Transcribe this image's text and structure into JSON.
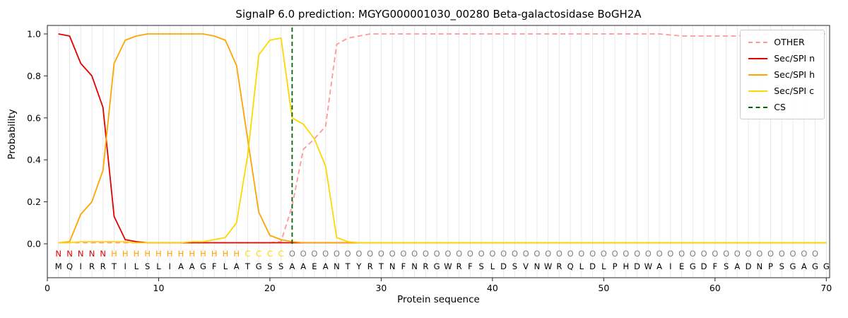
{
  "chart_data": {
    "type": "line",
    "title": "SignalP 6.0 prediction: MGYG000001030_00280 Beta-galactosidase BoGH2A",
    "xlabel": "Protein sequence",
    "ylabel": "Probability",
    "xticks": [
      0,
      10,
      20,
      30,
      40,
      50,
      60,
      70
    ],
    "yticks": [
      0.0,
      0.2,
      0.4,
      0.6,
      0.8,
      1.0
    ],
    "xlim": [
      0,
      70.3
    ],
    "ylim": [
      -0.16,
      1.04
    ],
    "x_start": 1,
    "grid": "vertical-per-residue",
    "legend_position": "upper-right",
    "cs_position": 22,
    "sequence": "MQIRRTILSLIAAGFLATGSSAAEANTYRTNFNRGWRFSLDSVNWRQLDLPHDWAIEGDFSADNPSGAGG",
    "region_labels": "NNNNNHHHHHHHHHHHHCCCCOOOOOOOOOOOOOOOOOOOOOOOOOOOOOOOOOOOOOOOOOOOOOOOO",
    "region_colors": {
      "N": "#e50000",
      "H": "#ffa500",
      "C": "#ffd700",
      "O": "#808080"
    },
    "colors": {
      "grid": "#e8e8e8",
      "spine": "#262626",
      "cs": "#006400",
      "sequence_text": "#000000",
      "background": "#ffffff"
    },
    "series": [
      {
        "name": "OTHER",
        "color": "#ff9896",
        "dashed": true,
        "values": [
          0.005,
          0.005,
          0.005,
          0.005,
          0.005,
          0.005,
          0.005,
          0.005,
          0.005,
          0.005,
          0.005,
          0.005,
          0.005,
          0.005,
          0.005,
          0.005,
          0.005,
          0.005,
          0.005,
          0.005,
          0.01,
          0.18,
          0.45,
          0.5,
          0.56,
          0.95,
          0.98,
          0.99,
          1,
          1,
          1,
          1,
          1,
          1,
          1,
          1,
          1,
          1,
          1,
          1,
          1,
          1,
          1,
          1,
          1,
          1,
          1,
          1,
          1,
          1,
          1,
          1,
          1,
          1,
          1,
          0.995,
          0.99,
          0.99,
          0.99,
          0.99,
          0.99,
          0.99,
          0.995,
          1,
          1,
          1,
          1,
          1,
          1,
          1
        ]
      },
      {
        "name": "Sec/SPI n",
        "color": "#e50000",
        "dashed": false,
        "values": [
          1,
          0.99,
          0.86,
          0.8,
          0.65,
          0.13,
          0.02,
          0.01,
          0.005,
          0.005,
          0.005,
          0.005,
          0.005,
          0.005,
          0.005,
          0.005,
          0.005,
          0.005,
          0.005,
          0.005,
          0.005,
          0.005,
          0.005,
          0.005,
          0.005,
          0.005,
          0.005,
          0.005,
          0.005,
          0.005,
          0.005,
          0.005,
          0.005,
          0.005,
          0.005,
          0.005,
          0.005,
          0.005,
          0.005,
          0.005,
          0.005,
          0.005,
          0.005,
          0.005,
          0.005,
          0.005,
          0.005,
          0.005,
          0.005,
          0.005,
          0.005,
          0.005,
          0.005,
          0.005,
          0.005,
          0.005,
          0.005,
          0.005,
          0.005,
          0.005,
          0.005,
          0.005,
          0.005,
          0.005,
          0.005,
          0.005,
          0.005,
          0.005,
          0.005,
          0.005
        ]
      },
      {
        "name": "Sec/SPI h",
        "color": "#ffa500",
        "dashed": false,
        "values": [
          0.005,
          0.01,
          0.14,
          0.2,
          0.35,
          0.86,
          0.97,
          0.99,
          1,
          1,
          1,
          1,
          1,
          1,
          0.99,
          0.97,
          0.85,
          0.5,
          0.15,
          0.04,
          0.02,
          0.01,
          0.005,
          0.005,
          0.005,
          0.005,
          0.005,
          0.005,
          0.005,
          0.005,
          0.005,
          0.005,
          0.005,
          0.005,
          0.005,
          0.005,
          0.005,
          0.005,
          0.005,
          0.005,
          0.005,
          0.005,
          0.005,
          0.005,
          0.005,
          0.005,
          0.005,
          0.005,
          0.005,
          0.005,
          0.005,
          0.005,
          0.005,
          0.005,
          0.005,
          0.005,
          0.005,
          0.005,
          0.005,
          0.005,
          0.005,
          0.005,
          0.005,
          0.005,
          0.005,
          0.005,
          0.005,
          0.005,
          0.005,
          0.005
        ]
      },
      {
        "name": "Sec/SPI c",
        "color": "#ffd700",
        "dashed": false,
        "values": [
          0.005,
          0.005,
          0.01,
          0.01,
          0.01,
          0.01,
          0.01,
          0.005,
          0.005,
          0.005,
          0.005,
          0.005,
          0.01,
          0.01,
          0.02,
          0.03,
          0.1,
          0.42,
          0.9,
          0.97,
          0.98,
          0.6,
          0.57,
          0.5,
          0.37,
          0.03,
          0.01,
          0.005,
          0.005,
          0.005,
          0.005,
          0.005,
          0.005,
          0.005,
          0.005,
          0.005,
          0.005,
          0.005,
          0.005,
          0.005,
          0.005,
          0.005,
          0.005,
          0.005,
          0.005,
          0.005,
          0.005,
          0.005,
          0.005,
          0.005,
          0.005,
          0.005,
          0.005,
          0.005,
          0.005,
          0.005,
          0.005,
          0.005,
          0.005,
          0.005,
          0.005,
          0.005,
          0.005,
          0.005,
          0.005,
          0.005,
          0.005,
          0.005,
          0.005,
          0.005
        ]
      }
    ],
    "legend": [
      {
        "label": "OTHER",
        "color": "#ff9896",
        "dashed": true
      },
      {
        "label": "Sec/SPI n",
        "color": "#e50000",
        "dashed": false
      },
      {
        "label": "Sec/SPI h",
        "color": "#ffa500",
        "dashed": false
      },
      {
        "label": "Sec/SPI c",
        "color": "#ffd700",
        "dashed": false
      },
      {
        "label": "CS",
        "color": "#006400",
        "dashed": true
      }
    ]
  }
}
